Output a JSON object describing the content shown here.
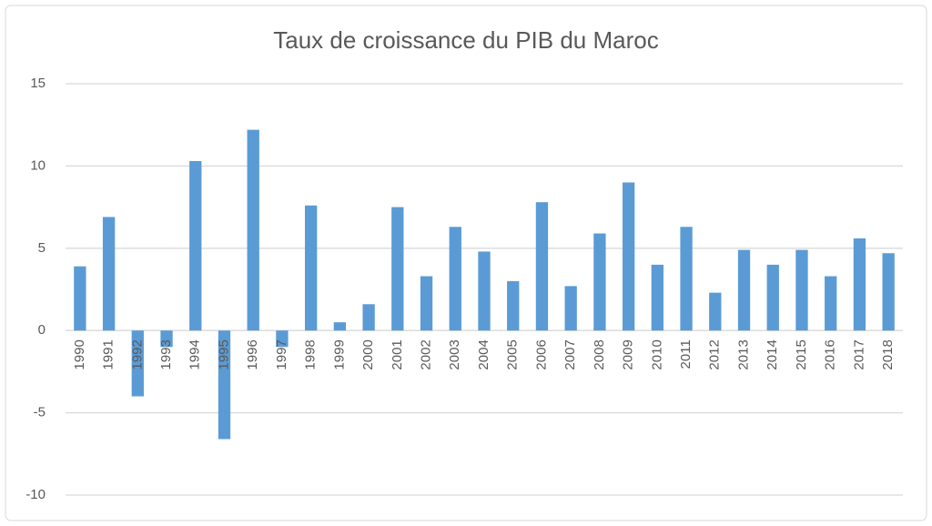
{
  "chart_data": {
    "type": "bar",
    "title": "Taux de croissance du PIB du Maroc",
    "categories": [
      "1990",
      "1991",
      "1992",
      "1993",
      "1994",
      "1995",
      "1996",
      "1997",
      "1998",
      "1999",
      "2000",
      "2001",
      "2002",
      "2003",
      "2004",
      "2005",
      "2006",
      "2007",
      "2008",
      "2009",
      "2010",
      "2011",
      "2012",
      "2013",
      "2014",
      "2015",
      "2016",
      "2017",
      "2018"
    ],
    "values": [
      3.9,
      6.9,
      -4.0,
      -1.0,
      10.3,
      -6.6,
      12.2,
      -1.0,
      7.6,
      0.5,
      1.6,
      7.5,
      3.3,
      6.3,
      4.8,
      3.0,
      7.8,
      2.7,
      5.9,
      9.0,
      4.0,
      6.3,
      2.3,
      4.9,
      4.0,
      4.9,
      3.3,
      5.6,
      4.7
    ],
    "color": "#5b9bd5",
    "ylim": [
      -10,
      15
    ],
    "yticks": [
      -10,
      -5,
      0,
      5,
      10,
      15
    ],
    "grid": true
  }
}
